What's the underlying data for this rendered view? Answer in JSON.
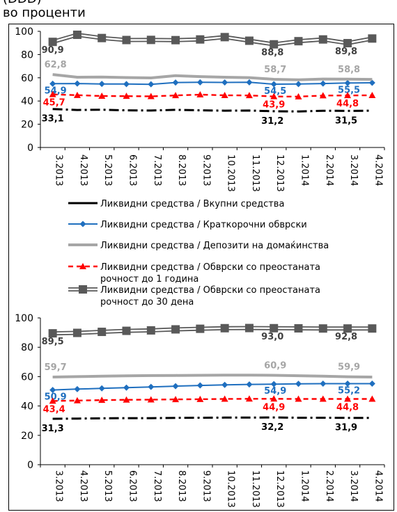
{
  "header": {
    "cut_text": "(DDD)",
    "unit_label": "во проценти"
  },
  "legend": [
    {
      "lines": [
        "Ликвидни средства / Вкупни средства"
      ]
    },
    {
      "lines": [
        "Ликвидни средства  / Краткорочни обврски"
      ]
    },
    {
      "lines": [
        "Ликвидни средства  / Депозити на домаќинства"
      ]
    },
    {
      "lines": [
        "Ликвидни средства  / Обврски со преостаната",
        "рочност до 1 година"
      ]
    },
    {
      "lines": [
        "Ликвидни средства  / Обврски со преостаната",
        "рочност до 30 дена"
      ]
    }
  ],
  "chart_data": [
    {
      "type": "line",
      "categories": [
        "3.2013",
        "4.2013",
        "5.2013",
        "6.2013",
        "7.2013",
        "8.2013",
        "9.2013",
        "10.2013",
        "11.2013",
        "12.2013",
        "1.2014",
        "2.2014",
        "3.2014",
        "4.2014"
      ],
      "ylim": [
        0,
        100
      ],
      "yticks": [
        0,
        20,
        40,
        60,
        80,
        100
      ],
      "grid": false,
      "legend_position": "between charts",
      "series": [
        {
          "name": "Ликвидни средства / Вкупни средства",
          "color": "#000000",
          "style": "dash-dot",
          "values": [
            33.1,
            32.3,
            32.5,
            32.0,
            31.8,
            32.4,
            32.0,
            31.7,
            31.8,
            31.2,
            31.0,
            31.6,
            31.5,
            31.7
          ],
          "labels": [
            {
              "i": 0,
              "text": "33,1"
            },
            {
              "i": 9,
              "text": "31,2"
            },
            {
              "i": 12,
              "text": "31,5"
            }
          ]
        },
        {
          "name": "Ликвидни средства  / Краткорочни обврски",
          "color": "#1f6fbf",
          "style": "solid-diamond",
          "values": [
            54.9,
            55.0,
            54.7,
            54.6,
            54.4,
            55.9,
            56.1,
            56.0,
            56.1,
            54.5,
            54.6,
            55.0,
            55.5,
            55.7
          ],
          "labels": [
            {
              "i": 0,
              "text": "54,9"
            },
            {
              "i": 9,
              "text": "54,5"
            },
            {
              "i": 12,
              "text": "55,5"
            }
          ]
        },
        {
          "name": "Ликвидни средства  / Депозити на домаќинства",
          "color": "#a6a6a6",
          "style": "thick-solid",
          "values": [
            62.8,
            60.5,
            60.6,
            60.2,
            59.9,
            61.8,
            61.0,
            60.5,
            60.1,
            58.7,
            58.2,
            58.9,
            58.8,
            58.6
          ],
          "labels": [
            {
              "i": 0,
              "text": "62,8"
            },
            {
              "i": 9,
              "text": "58,7"
            },
            {
              "i": 12,
              "text": "58,8"
            }
          ]
        },
        {
          "name": "Ликвидни средства  / Обврски со преостаната рочност до 1 година",
          "color": "#ff0000",
          "style": "dashed-triangle",
          "values": [
            45.7,
            45.0,
            44.3,
            44.2,
            44.0,
            44.8,
            45.5,
            44.9,
            44.8,
            43.9,
            43.8,
            44.7,
            44.8,
            44.9
          ],
          "labels": [
            {
              "i": 0,
              "text": "45,7"
            },
            {
              "i": 9,
              "text": "43,9"
            },
            {
              "i": 12,
              "text": "44,8"
            }
          ]
        },
        {
          "name": "Ликвидни средства  / Обврски со преостаната рочност до 30 дена",
          "color": "#595959",
          "style": "double-square",
          "values": [
            90.9,
            97.0,
            94.2,
            92.5,
            92.6,
            92.4,
            93.0,
            95.0,
            91.9,
            88.8,
            91.5,
            93.0,
            89.8,
            93.8
          ],
          "labels": [
            {
              "i": 0,
              "text": "90,9"
            },
            {
              "i": 9,
              "text": "88,8"
            },
            {
              "i": 12,
              "text": "89,8"
            }
          ]
        }
      ]
    },
    {
      "type": "line",
      "categories": [
        "3.2013",
        "4.2013",
        "5.2013",
        "6.2013",
        "7.2013",
        "8.2013",
        "9.2013",
        "10.2013",
        "11.2013",
        "12.2013",
        "1.2014",
        "2.2014",
        "3.2014",
        "4.2014"
      ],
      "ylim": [
        0,
        100
      ],
      "yticks": [
        0,
        20,
        40,
        60,
        80,
        100
      ],
      "grid": false,
      "legend_position": "between charts",
      "series": [
        {
          "name": "Ликвидни средства / Вкупни средства",
          "color": "#000000",
          "style": "dash-dot",
          "values": [
            31.3,
            31.4,
            31.6,
            31.7,
            31.7,
            31.9,
            32.0,
            32.1,
            32.1,
            32.2,
            32.0,
            32.0,
            31.9,
            31.9
          ],
          "labels": [
            {
              "i": 0,
              "text": "31,3"
            },
            {
              "i": 9,
              "text": "32,2"
            },
            {
              "i": 12,
              "text": "31,9"
            }
          ]
        },
        {
          "name": "Ликвидни средства  / Краткорочни обврски",
          "color": "#1f6fbf",
          "style": "solid-diamond",
          "values": [
            50.9,
            51.5,
            52.0,
            52.5,
            53.0,
            53.5,
            54.0,
            54.4,
            54.7,
            54.9,
            55.1,
            55.2,
            55.2,
            55.2
          ],
          "labels": [
            {
              "i": 0,
              "text": "50,9"
            },
            {
              "i": 9,
              "text": "54,9"
            },
            {
              "i": 12,
              "text": "55,2"
            }
          ]
        },
        {
          "name": "Ликвидни средства  / Депозити на домаќинства",
          "color": "#a6a6a6",
          "style": "thick-solid",
          "values": [
            59.7,
            60.0,
            60.3,
            60.5,
            60.7,
            60.8,
            60.9,
            61.0,
            61.0,
            60.9,
            60.6,
            60.3,
            59.9,
            59.7
          ],
          "labels": [
            {
              "i": 0,
              "text": "59,7"
            },
            {
              "i": 9,
              "text": "60,9"
            },
            {
              "i": 12,
              "text": "59,9"
            }
          ]
        },
        {
          "name": "Ликвидни средства  / Обврски со преостаната рочност до 1 година",
          "color": "#ff0000",
          "style": "dashed-triangle",
          "values": [
            43.4,
            43.7,
            44.0,
            44.2,
            44.3,
            44.5,
            44.6,
            44.8,
            44.9,
            44.9,
            44.8,
            44.8,
            44.8,
            44.8
          ],
          "labels": [
            {
              "i": 0,
              "text": "43,4"
            },
            {
              "i": 9,
              "text": "44,9"
            },
            {
              "i": 12,
              "text": "44,8"
            }
          ]
        },
        {
          "name": "Ликвидни средства  / Обврски со преостаната рочност до 30 дена",
          "color": "#595959",
          "style": "double-square",
          "values": [
            89.5,
            89.8,
            90.5,
            91.2,
            91.5,
            92.2,
            92.6,
            93.0,
            93.1,
            93.0,
            92.9,
            92.8,
            92.8,
            92.8
          ],
          "labels": [
            {
              "i": 0,
              "text": "89,5"
            },
            {
              "i": 9,
              "text": "93,0"
            },
            {
              "i": 12,
              "text": "92,8"
            }
          ]
        }
      ]
    }
  ]
}
